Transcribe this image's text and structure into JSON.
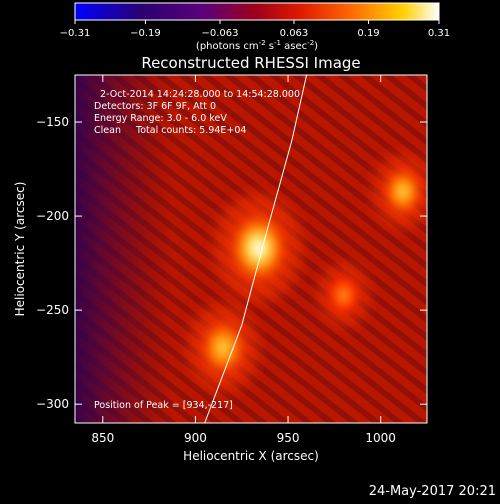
{
  "chart_data": {
    "type": "heatmap",
    "title": "Reconstructed RHESSI Image",
    "xlabel": "Heliocentric X (arcsec)",
    "ylabel": "Heliocentric Y (arcsec)",
    "xlim": [
      835,
      1025
    ],
    "ylim": [
      -310,
      -125
    ],
    "x_ticks": [
      850,
      900,
      950,
      1000
    ],
    "y_ticks": [
      -150,
      -200,
      -250,
      -300
    ],
    "colorbar": {
      "range": [
        -0.31,
        0.31
      ],
      "ticks": [
        -0.31,
        -0.19,
        -0.063,
        0.063,
        0.19,
        0.31
      ],
      "tick_labels": [
        "-0.31",
        "-0.19",
        "-0.063",
        "0.063",
        "0.19",
        "0.31"
      ],
      "unit_label": "(photons cm",
      "unit_sup1": "-2",
      "unit_mid": " s",
      "unit_sup2": "-1",
      "unit_mid2": " asec",
      "unit_sup3": "-2",
      "unit_end": ")"
    },
    "annotations": [
      "2-Oct-2014 14:24:28.000 to 14:54:28.000",
      "Detectors: 3F 6F 9F, Att 0",
      "Energy Range: 3.0 - 6.0 keV",
      "Clean     Total counts: 5.94E+04"
    ],
    "peak_label": "Position of Peak = [934,-217]",
    "peak": {
      "x": 934,
      "y": -217
    },
    "sources": [
      {
        "x": 934,
        "y": -217,
        "value": 0.31
      },
      {
        "x": 915,
        "y": -270,
        "value": 0.21
      },
      {
        "x": 1012,
        "y": -187,
        "value": 0.15
      },
      {
        "x": 980,
        "y": -242,
        "value": 0.09
      }
    ],
    "limb_curve": [
      {
        "x": 905,
        "y": -310
      },
      {
        "x": 925,
        "y": -258
      },
      {
        "x": 938,
        "y": -210
      },
      {
        "x": 952,
        "y": -160
      },
      {
        "x": 960,
        "y": -125
      }
    ],
    "colors": {
      "background": "#000000",
      "frame": "#ffffff",
      "limb": "#ffffff",
      "colormap": [
        "#0000ff",
        "#2a0073",
        "#5a007a",
        "#a0001a",
        "#e01a00",
        "#ff6a00",
        "#ffd000",
        "#ffffff"
      ]
    }
  },
  "footer_date": "24-May-2017 20:21"
}
